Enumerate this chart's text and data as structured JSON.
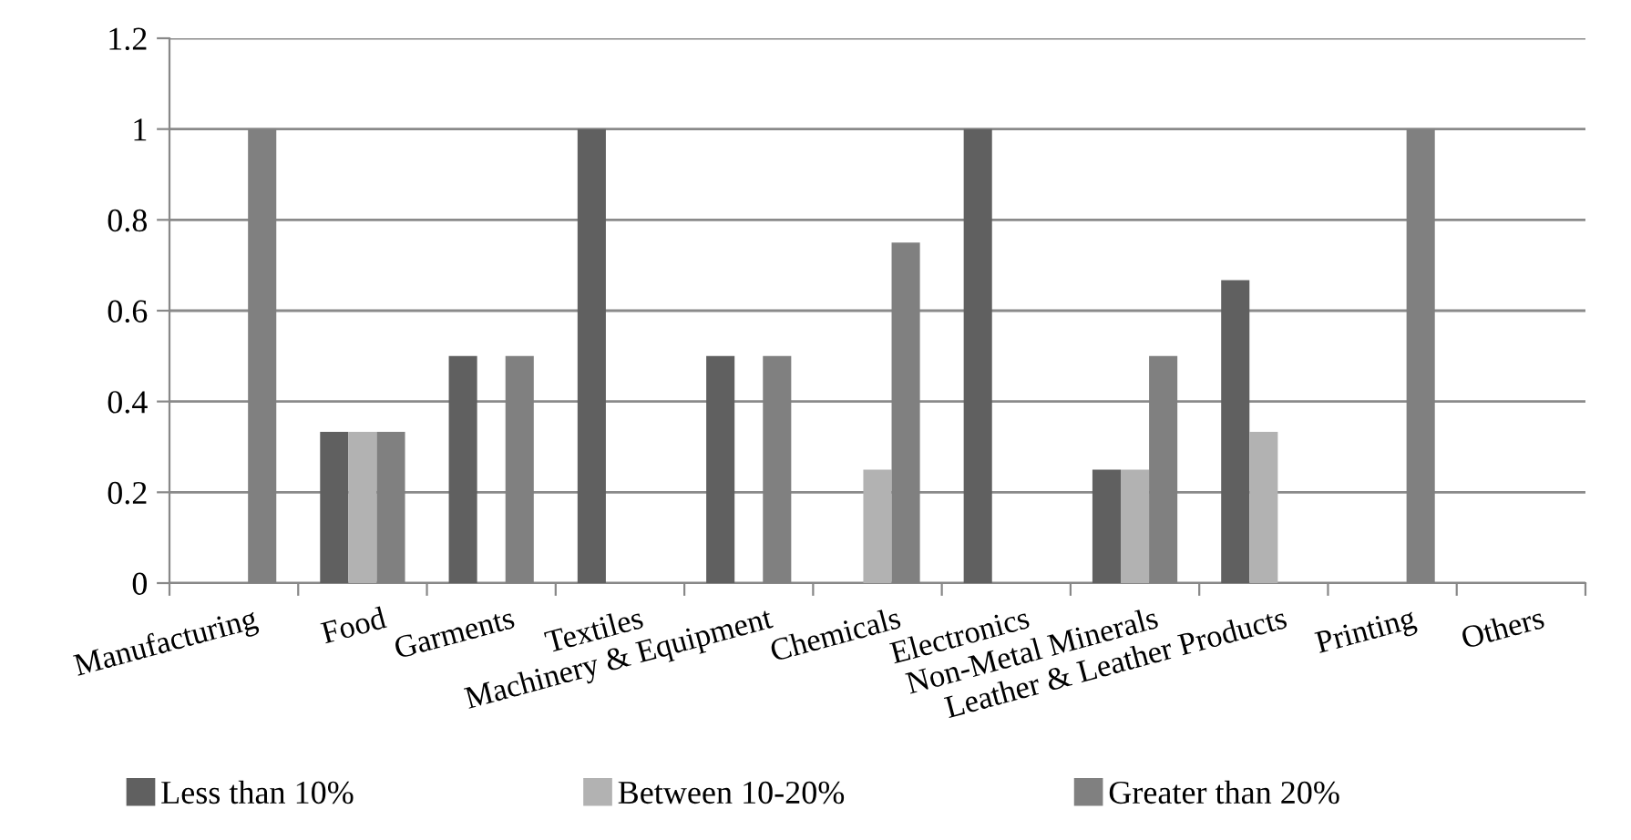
{
  "chart_data": {
    "type": "bar",
    "categories": [
      "Manufacturing",
      "Food",
      "Garments",
      "Textiles",
      "Machinery & Equipment",
      "Chemicals",
      "Electronics",
      "Non-Metal Minerals",
      "Leather & Leather Products",
      "Printing",
      "Others"
    ],
    "series": [
      {
        "name": "Less than 10%",
        "color": "#606060",
        "values": [
          0,
          0.333,
          0.5,
          1,
          0.5,
          0,
          1,
          0.25,
          0.667,
          0,
          0
        ]
      },
      {
        "name": "Between 10-20%",
        "color": "#b2b2b2",
        "values": [
          0,
          0.333,
          0,
          0,
          0,
          0.25,
          0,
          0.25,
          0.333,
          0,
          0
        ]
      },
      {
        "name": "Greater than 20%",
        "color": "#808080",
        "values": [
          1,
          0.333,
          0.5,
          0,
          0.5,
          0.75,
          0,
          0.5,
          0,
          1,
          0
        ]
      }
    ],
    "ylim": [
      0,
      1.2
    ],
    "yticks": [
      0,
      0.2,
      0.4,
      0.6,
      0.8,
      1,
      1.2
    ],
    "grid": "y",
    "legend": "bottom"
  }
}
